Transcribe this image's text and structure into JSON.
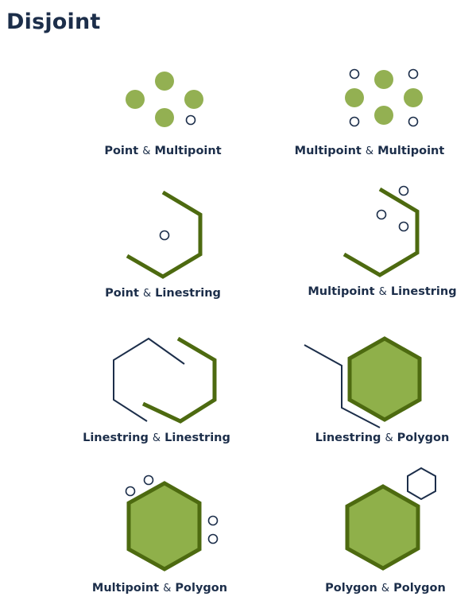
{
  "title": "Disjoint",
  "colors": {
    "text": "#1c2e4a",
    "line_green": "#4d6a10",
    "fill_green": "#8fb04a",
    "point_green": "#93b052",
    "outline_navy": "#1c2e4a"
  },
  "amp": "&",
  "items": [
    {
      "a": "Point",
      "b": "Multipoint"
    },
    {
      "a": "Multipoint",
      "b": "Multipoint"
    },
    {
      "a": "Point",
      "b": "Linestring"
    },
    {
      "a": "Multipoint",
      "b": "Linestring"
    },
    {
      "a": "Linestring",
      "b": "Linestring"
    },
    {
      "a": "Linestring",
      "b": "Polygon"
    },
    {
      "a": "Multipoint",
      "b": "Polygon"
    },
    {
      "a": "Polygon",
      "b": "Polygon"
    }
  ]
}
